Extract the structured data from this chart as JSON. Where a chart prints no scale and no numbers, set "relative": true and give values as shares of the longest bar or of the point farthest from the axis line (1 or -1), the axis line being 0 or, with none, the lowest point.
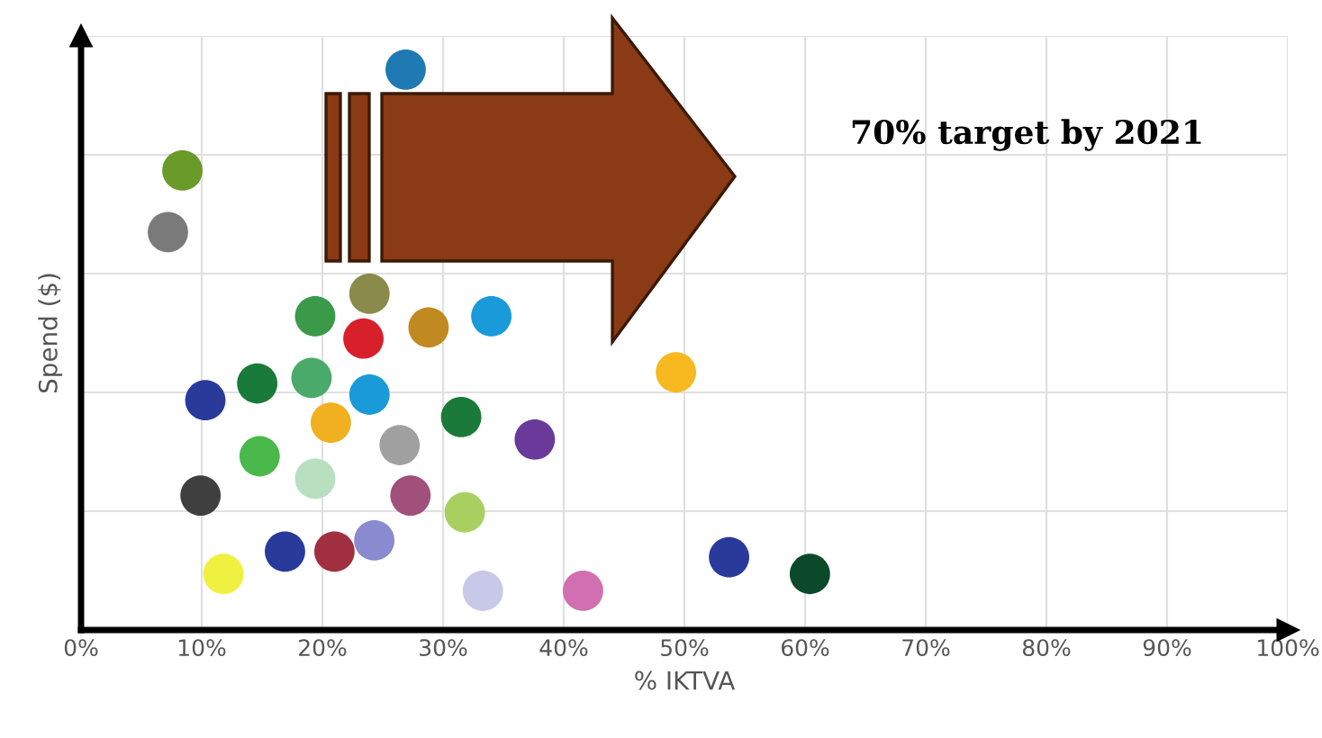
{
  "chart_data": {
    "type": "scatter",
    "xlabel": "% IKTVA",
    "ylabel": "Spend ($)",
    "relative": true,
    "annotations": [
      "70% target by 2021"
    ],
    "xlim": [
      0,
      100
    ],
    "xticks": [
      {
        "value": 0,
        "label": "0%"
      },
      {
        "value": 10,
        "label": "10%"
      },
      {
        "value": 20,
        "label": "20%"
      },
      {
        "value": 30,
        "label": "30%"
      },
      {
        "value": 40,
        "label": "40%"
      },
      {
        "value": 50,
        "label": "50%"
      },
      {
        "value": 60,
        "label": "60%"
      },
      {
        "value": 70,
        "label": "70%"
      },
      {
        "value": 80,
        "label": "80%"
      },
      {
        "value": 90,
        "label": "90%"
      },
      {
        "value": 100,
        "label": "100%"
      }
    ],
    "grid": true,
    "marker": "circle",
    "x": [
      26.9,
      8.4,
      7.2,
      23.9,
      19.4,
      23.4,
      28.8,
      34.0,
      10.3,
      14.6,
      19.1,
      23.9,
      31.5,
      20.7,
      26.4,
      37.6,
      49.3,
      14.8,
      19.4,
      9.9,
      27.3,
      31.8,
      16.9,
      21.0,
      24.3,
      11.8,
      33.3,
      41.6,
      53.7,
      60.4
    ],
    "values": [
      1.0,
      0.82,
      0.71,
      0.6,
      0.56,
      0.52,
      0.54,
      0.56,
      0.41,
      0.44,
      0.45,
      0.42,
      0.38,
      0.37,
      0.33,
      0.34,
      0.46,
      0.31,
      0.27,
      0.24,
      0.24,
      0.21,
      0.14,
      0.14,
      0.16,
      0.1,
      0.07,
      0.07,
      0.13,
      0.1
    ],
    "colors": [
      "#1f7ab4",
      "#6a9a2a",
      "#7a7a7a",
      "#8a8a4a",
      "#3a9a4a",
      "#d8202a",
      "#c08a20",
      "#1a9ad8",
      "#2a3a9a",
      "#1a7a3a",
      "#4aaa6a",
      "#1a9ad8",
      "#1a7a3a",
      "#f0b020",
      "#a0a0a0",
      "#6a3a9a",
      "#f8b820",
      "#4ab84a",
      "#b8e0c0",
      "#404040",
      "#a0507a",
      "#a8d060",
      "#2a3a9a",
      "#a03040",
      "#8a8ad0",
      "#f0f040",
      "#c8c8e8",
      "#d070b0",
      "#2a3a9a",
      "#0a4a2a"
    ]
  }
}
